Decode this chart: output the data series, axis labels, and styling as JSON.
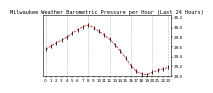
{
  "title": "Milwaukee Weather Barometric Pressure per Hour (Last 24 Hours)",
  "ylim": [
    29.0,
    30.25
  ],
  "yticks": [
    29.0,
    29.2,
    29.4,
    29.6,
    29.8,
    30.0,
    30.2
  ],
  "ytick_labels": [
    "29.0",
    "29.2",
    "29.4",
    "29.6",
    "29.8",
    "30.0",
    "30.2"
  ],
  "hours": [
    0,
    1,
    2,
    3,
    4,
    5,
    6,
    7,
    8,
    9,
    10,
    11,
    12,
    13,
    14,
    15,
    16,
    17,
    18,
    19,
    20,
    21,
    22,
    23
  ],
  "pressure": [
    29.55,
    29.62,
    29.68,
    29.74,
    29.8,
    29.88,
    29.95,
    30.02,
    30.05,
    30.0,
    29.92,
    29.85,
    29.76,
    29.65,
    29.52,
    29.38,
    29.22,
    29.1,
    29.05,
    29.03,
    29.08,
    29.12,
    29.15,
    29.18
  ],
  "line_color": "#cc0000",
  "marker_color": "#111111",
  "grid_color": "#bbbbbb",
  "background_color": "#ffffff",
  "title_fontsize": 3.8,
  "tick_fontsize": 3.0,
  "vgrid_x": [
    0,
    4,
    8,
    12,
    16,
    20,
    23
  ],
  "xlim": [
    -0.5,
    23.5
  ],
  "xtick_step": 1
}
